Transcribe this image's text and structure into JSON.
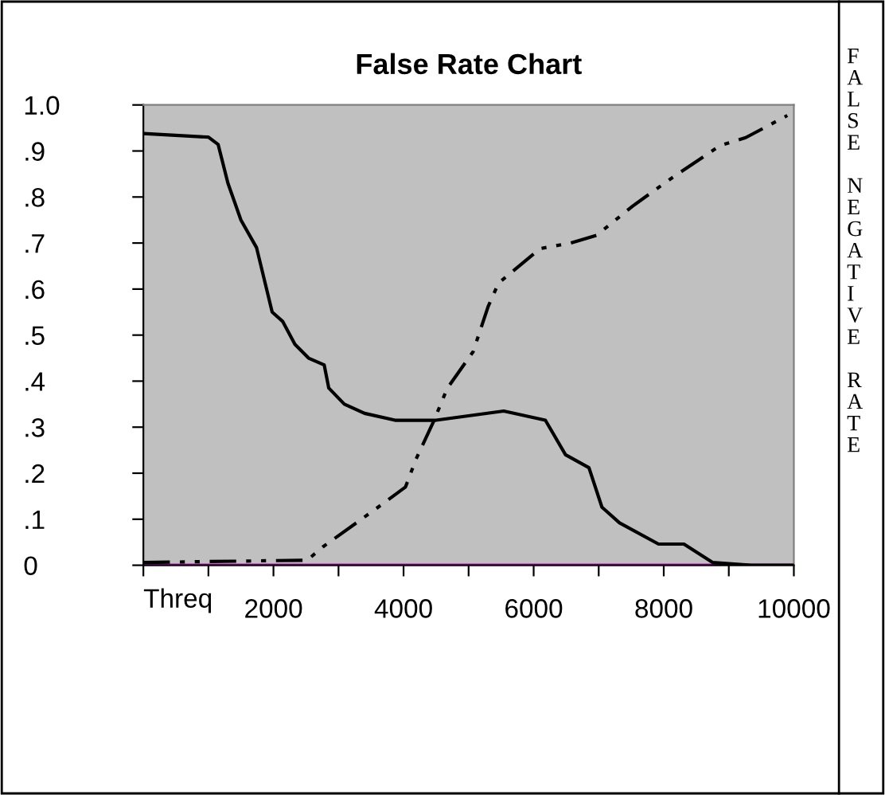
{
  "chart_data": {
    "type": "line",
    "title": "False Rate Chart",
    "xlabel": "Threq",
    "annotations": [
      "FALSE NEGATIVE RATE"
    ],
    "series": [
      {
        "color": "#000000",
        "line_style": "solid",
        "x": [
          0,
          1000,
          1150,
          1300,
          1500,
          1740,
          1980,
          2140,
          2330,
          2540,
          2780,
          2850,
          3090,
          3400,
          3870,
          4500,
          5540,
          6180,
          6490,
          6850,
          7050,
          7320,
          7920,
          8310,
          8750,
          9340,
          10000
        ],
        "values": [
          0.938,
          0.93,
          0.914,
          0.83,
          0.75,
          0.69,
          0.55,
          0.53,
          0.48,
          0.45,
          0.435,
          0.385,
          0.35,
          0.33,
          0.315,
          0.315,
          0.335,
          0.315,
          0.24,
          0.212,
          0.126,
          0.092,
          0.046,
          0.046,
          0.006,
          0.0,
          0.0
        ]
      },
      {
        "color": "#000000",
        "line_style": "dashed",
        "x": [
          0,
          2520,
          2760,
          3550,
          4030,
          4190,
          4470,
          4670,
          5070,
          5300,
          5460,
          6100,
          6570,
          6970,
          7520,
          8080,
          8870,
          9260,
          9900
        ],
        "values": [
          0.006,
          0.011,
          0.04,
          0.12,
          0.17,
          0.23,
          0.315,
          0.384,
          0.464,
          0.562,
          0.613,
          0.688,
          0.7,
          0.717,
          0.78,
          0.837,
          0.912,
          0.929,
          0.977
        ]
      }
    ],
    "ref_lines": [
      {
        "axis": "y",
        "value": 0,
        "color": "#cc00cc"
      }
    ],
    "xlim": [
      0,
      10000
    ],
    "xticks": [
      {
        "value": 0,
        "label": null
      },
      {
        "value": 1000,
        "label": null
      },
      2000,
      {
        "value": 3000,
        "label": null
      },
      4000,
      {
        "value": 5000,
        "label": null
      },
      6000,
      {
        "value": 7000,
        "label": null
      },
      8000,
      {
        "value": 9000,
        "label": null
      },
      10000
    ],
    "ylim": [
      0,
      1.0
    ],
    "yticks": [
      0,
      {
        "value": 0.1,
        "label": ".1"
      },
      {
        "value": 0.2,
        "label": ".2"
      },
      {
        "value": 0.3,
        "label": ".3"
      },
      {
        "value": 0.4,
        "label": ".4"
      },
      {
        "value": 0.5,
        "label": ".5"
      },
      {
        "value": 0.6,
        "label": ".6"
      },
      {
        "value": 0.7,
        "label": ".7"
      },
      {
        "value": 0.8,
        "label": ".8"
      },
      {
        "value": 0.9,
        "label": ".9"
      },
      {
        "value": 1.0,
        "label": "1.0"
      }
    ],
    "grid": false,
    "legend": false,
    "marker": "none"
  }
}
